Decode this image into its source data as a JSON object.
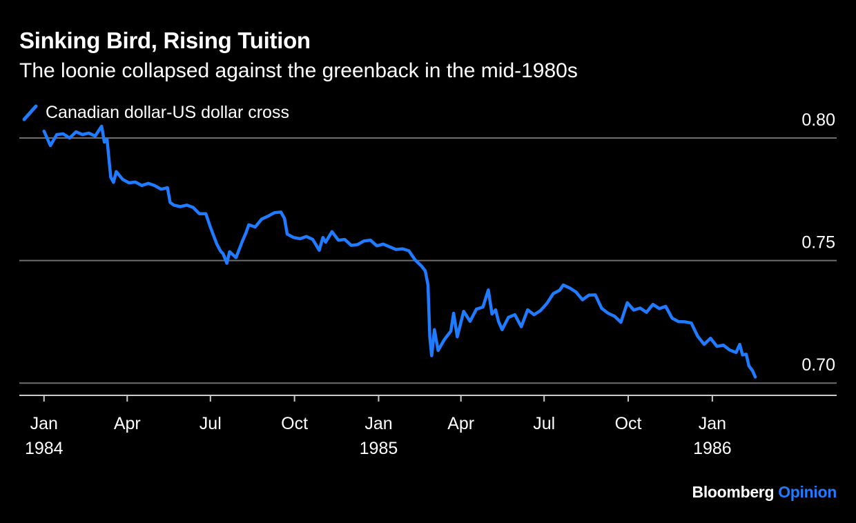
{
  "title": "Sinking Bird, Rising Tuition",
  "subtitle": "The loonie collapsed against the greenback in the mid-1980s",
  "branding": {
    "name": "Bloomberg",
    "section": "Opinion",
    "section_color": "#1f7bff"
  },
  "chart_data": {
    "type": "line",
    "title": "Sinking Bird, Rising Tuition",
    "subtitle": "The loonie collapsed against the greenback in the mid-1980s",
    "ylim": [
      0.695,
      0.8
    ],
    "yticks": [
      0.7,
      0.75,
      0.8
    ],
    "ytick_labels": [
      "0.70",
      "0.75",
      "0.80"
    ],
    "xlim": [
      "1983-12-05",
      "1986-05-17"
    ],
    "xticks": [
      {
        "date": "1984-01-01",
        "label": [
          "Jan",
          "1984"
        ]
      },
      {
        "date": "1984-04-01",
        "label": [
          "Apr",
          ""
        ]
      },
      {
        "date": "1984-07-01",
        "label": [
          "Jul",
          ""
        ]
      },
      {
        "date": "1984-10-01",
        "label": [
          "Oct",
          ""
        ]
      },
      {
        "date": "1985-01-01",
        "label": [
          "Jan",
          "1985"
        ]
      },
      {
        "date": "1985-04-01",
        "label": [
          "Apr",
          ""
        ]
      },
      {
        "date": "1985-07-01",
        "label": [
          "Jul",
          ""
        ]
      },
      {
        "date": "1985-10-01",
        "label": [
          "Oct",
          ""
        ]
      },
      {
        "date": "1986-01-01",
        "label": [
          "Jan",
          "1986"
        ]
      }
    ],
    "grid": true,
    "legend_position": "top-left",
    "series": [
      {
        "name": "Canadian dollar-US dollar cross",
        "color": "#1f7bff",
        "points": [
          [
            "1984-01-01",
            0.8028
          ],
          [
            "1984-01-08",
            0.7969
          ],
          [
            "1984-01-15",
            0.8014
          ],
          [
            "1984-01-22",
            0.8017
          ],
          [
            "1984-01-29",
            0.8
          ],
          [
            "1984-02-05",
            0.8025
          ],
          [
            "1984-02-12",
            0.8014
          ],
          [
            "1984-02-19",
            0.802
          ],
          [
            "1984-02-26",
            0.8008
          ],
          [
            "1984-03-04",
            0.8048
          ],
          [
            "1984-03-07",
            0.7983
          ],
          [
            "1984-03-10",
            0.7994
          ],
          [
            "1984-03-14",
            0.784
          ],
          [
            "1984-03-17",
            0.7819
          ],
          [
            "1984-03-20",
            0.7863
          ],
          [
            "1984-03-27",
            0.7831
          ],
          [
            "1984-04-03",
            0.7817
          ],
          [
            "1984-04-10",
            0.782
          ],
          [
            "1984-04-17",
            0.7806
          ],
          [
            "1984-04-24",
            0.7815
          ],
          [
            "1984-05-01",
            0.7806
          ],
          [
            "1984-05-08",
            0.7791
          ],
          [
            "1984-05-15",
            0.7797
          ],
          [
            "1984-05-18",
            0.7737
          ],
          [
            "1984-05-22",
            0.7726
          ],
          [
            "1984-05-29",
            0.772
          ],
          [
            "1984-06-05",
            0.7726
          ],
          [
            "1984-06-12",
            0.7717
          ],
          [
            "1984-06-19",
            0.7691
          ],
          [
            "1984-06-26",
            0.7691
          ],
          [
            "1984-07-01",
            0.7636
          ],
          [
            "1984-07-08",
            0.7567
          ],
          [
            "1984-07-12",
            0.7539
          ],
          [
            "1984-07-15",
            0.7527
          ],
          [
            "1984-07-19",
            0.7489
          ],
          [
            "1984-07-22",
            0.7536
          ],
          [
            "1984-07-29",
            0.7512
          ],
          [
            "1984-08-05",
            0.7579
          ],
          [
            "1984-08-09",
            0.7614
          ],
          [
            "1984-08-12",
            0.7646
          ],
          [
            "1984-08-19",
            0.7637
          ],
          [
            "1984-08-26",
            0.7669
          ],
          [
            "1984-09-02",
            0.7681
          ],
          [
            "1984-09-09",
            0.7695
          ],
          [
            "1984-09-16",
            0.7698
          ],
          [
            "1984-09-20",
            0.7672
          ],
          [
            "1984-09-23",
            0.7608
          ],
          [
            "1984-09-30",
            0.7594
          ],
          [
            "1984-10-07",
            0.7589
          ],
          [
            "1984-10-14",
            0.7598
          ],
          [
            "1984-10-21",
            0.7586
          ],
          [
            "1984-10-28",
            0.7542
          ],
          [
            "1984-11-01",
            0.7594
          ],
          [
            "1984-11-04",
            0.7575
          ],
          [
            "1984-11-11",
            0.7618
          ],
          [
            "1984-11-18",
            0.7583
          ],
          [
            "1984-11-25",
            0.7586
          ],
          [
            "1984-12-02",
            0.7562
          ],
          [
            "1984-12-09",
            0.7565
          ],
          [
            "1984-12-16",
            0.758
          ],
          [
            "1984-12-23",
            0.7583
          ],
          [
            "1984-12-30",
            0.756
          ],
          [
            "1985-01-06",
            0.7567
          ],
          [
            "1985-01-13",
            0.7556
          ],
          [
            "1985-01-20",
            0.7545
          ],
          [
            "1985-01-27",
            0.7548
          ],
          [
            "1985-02-03",
            0.754
          ],
          [
            "1985-02-10",
            0.7502
          ],
          [
            "1985-02-17",
            0.7477
          ],
          [
            "1985-02-21",
            0.7458
          ],
          [
            "1985-02-24",
            0.74
          ],
          [
            "1985-02-26",
            0.7189
          ],
          [
            "1985-02-28",
            0.7112
          ],
          [
            "1985-03-03",
            0.7218
          ],
          [
            "1985-03-07",
            0.7133
          ],
          [
            "1985-03-14",
            0.7178
          ],
          [
            "1985-03-21",
            0.7212
          ],
          [
            "1985-03-24",
            0.7285
          ],
          [
            "1985-03-28",
            0.7189
          ],
          [
            "1985-04-04",
            0.7293
          ],
          [
            "1985-04-11",
            0.7252
          ],
          [
            "1985-04-18",
            0.7302
          ],
          [
            "1985-04-25",
            0.731
          ],
          [
            "1985-05-01",
            0.738
          ],
          [
            "1985-05-05",
            0.7282
          ],
          [
            "1985-05-09",
            0.7299
          ],
          [
            "1985-05-12",
            0.7253
          ],
          [
            "1985-05-16",
            0.7218
          ],
          [
            "1985-05-23",
            0.7268
          ],
          [
            "1985-05-30",
            0.7279
          ],
          [
            "1985-06-06",
            0.723
          ],
          [
            "1985-06-13",
            0.7299
          ],
          [
            "1985-06-20",
            0.7279
          ],
          [
            "1985-06-27",
            0.7296
          ],
          [
            "1985-07-04",
            0.7325
          ],
          [
            "1985-07-11",
            0.7365
          ],
          [
            "1985-07-18",
            0.7379
          ],
          [
            "1985-07-22",
            0.74
          ],
          [
            "1985-07-29",
            0.7388
          ],
          [
            "1985-08-05",
            0.7371
          ],
          [
            "1985-08-12",
            0.734
          ],
          [
            "1985-08-19",
            0.7359
          ],
          [
            "1985-08-26",
            0.736
          ],
          [
            "1985-09-02",
            0.7305
          ],
          [
            "1985-09-09",
            0.7285
          ],
          [
            "1985-09-16",
            0.7273
          ],
          [
            "1985-09-23",
            0.7248
          ],
          [
            "1985-09-30",
            0.7328
          ],
          [
            "1985-10-07",
            0.7298
          ],
          [
            "1985-10-14",
            0.7306
          ],
          [
            "1985-10-21",
            0.7289
          ],
          [
            "1985-10-28",
            0.7321
          ],
          [
            "1985-11-04",
            0.7304
          ],
          [
            "1985-11-11",
            0.7313
          ],
          [
            "1985-11-18",
            0.7265
          ],
          [
            "1985-11-25",
            0.7251
          ],
          [
            "1985-12-02",
            0.725
          ],
          [
            "1985-12-09",
            0.7245
          ],
          [
            "1985-12-16",
            0.7191
          ],
          [
            "1985-12-23",
            0.7158
          ],
          [
            "1985-12-30",
            0.7183
          ],
          [
            "1986-01-06",
            0.715
          ],
          [
            "1986-01-13",
            0.7155
          ],
          [
            "1986-01-20",
            0.7135
          ],
          [
            "1986-01-27",
            0.7125
          ],
          [
            "1986-01-31",
            0.7158
          ],
          [
            "1986-02-03",
            0.7115
          ],
          [
            "1986-02-07",
            0.7118
          ],
          [
            "1986-02-10",
            0.707
          ],
          [
            "1986-02-14",
            0.705
          ],
          [
            "1986-02-17",
            0.7025
          ]
        ]
      }
    ]
  }
}
